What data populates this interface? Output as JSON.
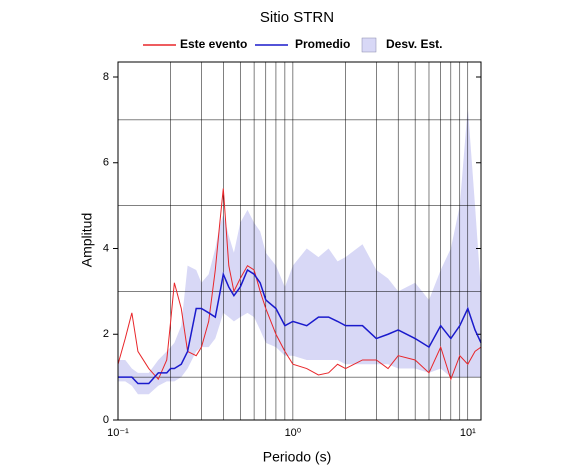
{
  "chart_data": {
    "type": "line",
    "title": "Sitio STRN",
    "x_label": "Periodo (s)",
    "y_label": "Amplitud",
    "log_x": true,
    "xlim": [
      0.1,
      11.9
    ],
    "ylim": [
      0,
      8.35
    ],
    "xticks": [
      {
        "value": 0.1,
        "label": "10⁻¹"
      },
      {
        "value": 1,
        "label": "10⁰"
      },
      {
        "value": 10,
        "label": "10¹"
      }
    ],
    "xminor_ticks": [
      0.2,
      0.3,
      0.4,
      0.5,
      0.6,
      0.7,
      0.8,
      0.9,
      2,
      3,
      4,
      5,
      6,
      7,
      8,
      9
    ],
    "yticks": [
      0,
      2,
      4,
      6,
      8
    ],
    "yminor_ticks": [
      1,
      3,
      5,
      7
    ],
    "grid": true,
    "x": [
      0.1,
      0.11,
      0.12,
      0.13,
      0.15,
      0.17,
      0.19,
      0.2,
      0.21,
      0.23,
      0.25,
      0.28,
      0.3,
      0.33,
      0.36,
      0.38,
      0.4,
      0.43,
      0.46,
      0.5,
      0.55,
      0.6,
      0.65,
      0.7,
      0.8,
      0.9,
      1,
      1.2,
      1.4,
      1.6,
      1.8,
      2,
      2.5,
      3,
      3.5,
      4,
      5,
      6,
      7,
      8,
      9,
      10,
      11,
      11.9
    ],
    "series": [
      {
        "name": "Este evento",
        "color": "#e8262a",
        "values": [
          1.3,
          1.9,
          2.5,
          1.6,
          1.2,
          0.95,
          1.4,
          2.3,
          3.2,
          2.6,
          1.6,
          1.5,
          1.7,
          2.3,
          3.5,
          4.5,
          5.4,
          3.6,
          3.0,
          3.3,
          3.6,
          3.5,
          3.0,
          2.6,
          2.0,
          1.6,
          1.3,
          1.2,
          1.05,
          1.1,
          1.3,
          1.2,
          1.4,
          1.4,
          1.2,
          1.5,
          1.4,
          1.1,
          1.7,
          0.95,
          1.5,
          1.3,
          1.6,
          1.7
        ]
      },
      {
        "name": "Promedio",
        "color": "#1a1acc",
        "values": [
          1.0,
          1.0,
          1.0,
          0.85,
          0.85,
          1.1,
          1.1,
          1.2,
          1.2,
          1.3,
          1.6,
          2.6,
          2.6,
          2.5,
          2.4,
          2.9,
          3.4,
          3.1,
          2.9,
          3.1,
          3.5,
          3.4,
          3.2,
          2.8,
          2.6,
          2.2,
          2.3,
          2.2,
          2.4,
          2.4,
          2.3,
          2.2,
          2.2,
          1.9,
          2.0,
          2.1,
          1.9,
          1.7,
          2.2,
          1.9,
          2.2,
          2.6,
          2.1,
          1.8
        ]
      },
      {
        "name": "Desv. Est.",
        "color": "#d8d8f6",
        "low": [
          0.9,
          0.9,
          0.8,
          0.6,
          0.6,
          0.8,
          0.9,
          0.9,
          0.9,
          1.0,
          1.2,
          1.6,
          1.7,
          1.7,
          1.9,
          2.2,
          2.5,
          2.4,
          2.3,
          2.4,
          2.5,
          2.4,
          2.1,
          1.8,
          1.7,
          1.5,
          1.5,
          1.4,
          1.4,
          1.4,
          1.4,
          1.3,
          1.3,
          1.3,
          1.3,
          1.2,
          1.2,
          1.1,
          1.2,
          1.0,
          1.0,
          1.0,
          1.0,
          1.0
        ],
        "high": [
          1.4,
          1.4,
          1.2,
          1.1,
          1.1,
          1.4,
          1.6,
          1.7,
          1.8,
          2.2,
          3.6,
          3.5,
          3.2,
          3.4,
          4.0,
          4.5,
          4.8,
          4.3,
          3.9,
          4.6,
          4.9,
          4.6,
          4.4,
          3.9,
          3.6,
          3.1,
          3.6,
          4.0,
          3.8,
          4.0,
          3.7,
          3.8,
          4.1,
          3.5,
          3.3,
          3.0,
          3.2,
          2.8,
          3.5,
          4.0,
          5.0,
          7.3,
          5.0,
          3.0
        ]
      }
    ]
  }
}
